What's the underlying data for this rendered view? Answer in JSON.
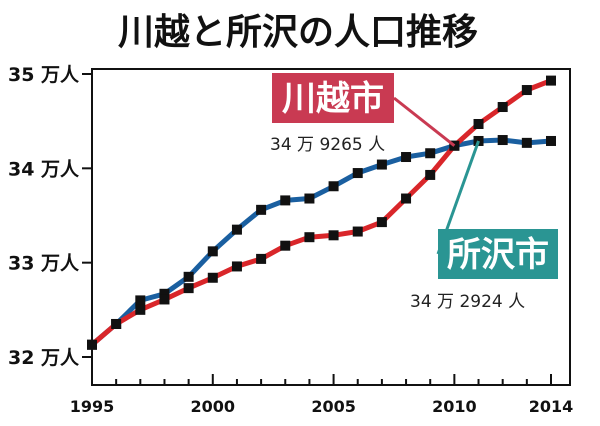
{
  "title": "川越と所沢の人口推移",
  "chart_data": {
    "type": "line",
    "title": "川越と所沢の人口推移",
    "xlabel": "",
    "ylabel": "",
    "x": [
      1995,
      1996,
      1997,
      1998,
      1999,
      2000,
      2001,
      2002,
      2003,
      2004,
      2005,
      2006,
      2007,
      2008,
      2009,
      2010,
      2011,
      2012,
      2013,
      2014
    ],
    "xlim": [
      1995,
      2014
    ],
    "ylim": [
      32,
      35
    ],
    "x_ticks": [
      "1995",
      "2000",
      "2005",
      "2010",
      "2014"
    ],
    "y_ticks": [
      "32 万人",
      "33 万人",
      "34 万人",
      "35 万人"
    ],
    "grid": false,
    "series": [
      {
        "name": "所沢市",
        "color": "#1a5fa0",
        "values": [
          32.13,
          32.35,
          32.6,
          32.67,
          32.85,
          33.12,
          33.35,
          33.56,
          33.66,
          33.68,
          33.81,
          33.95,
          34.04,
          34.12,
          34.16,
          34.24,
          34.29,
          34.3,
          34.27,
          34.29
        ]
      },
      {
        "name": "川越市",
        "color": "#d9262a",
        "values": [
          32.13,
          32.35,
          32.5,
          32.61,
          32.73,
          32.84,
          32.96,
          33.04,
          33.18,
          33.27,
          33.29,
          33.33,
          33.43,
          33.68,
          33.93,
          34.24,
          34.47,
          34.65,
          34.83,
          34.93
        ]
      }
    ],
    "annotations": [
      {
        "series": "川越市",
        "label": "川越市",
        "value_text": "34 万 9265 人",
        "color": "#c93a52"
      },
      {
        "series": "所沢市",
        "label": "所沢市",
        "value_text": "34 万 2924 人",
        "color": "#2a9593"
      }
    ]
  }
}
